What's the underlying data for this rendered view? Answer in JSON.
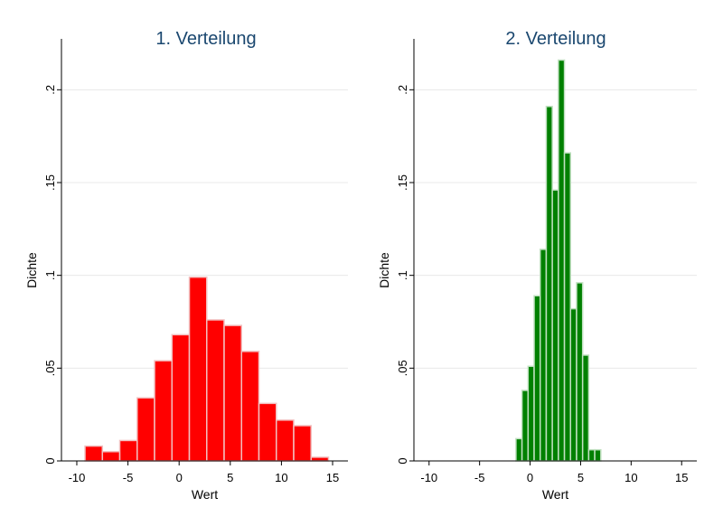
{
  "chart_data": [
    {
      "type": "bar",
      "title": "1. Verteilung",
      "xlabel": "Wert",
      "ylabel": "Dichte",
      "xlim": [
        -11.5,
        16.5
      ],
      "ylim": [
        0,
        0.225
      ],
      "grid": true,
      "color": "#ff0000",
      "edge_color": "#f2c0c0",
      "bin_width": 1.7,
      "x_ticks": [
        {
          "value": -10,
          "label": "-10"
        },
        {
          "value": -5,
          "label": "-5"
        },
        {
          "value": 0,
          "label": "0"
        },
        {
          "value": 5,
          "label": "5"
        },
        {
          "value": 10,
          "label": "10"
        },
        {
          "value": 15,
          "label": "15"
        }
      ],
      "y_ticks": [
        {
          "value": 0,
          "label": "0"
        },
        {
          "value": 0.05,
          "label": ".05"
        },
        {
          "value": 0.1,
          "label": ".1"
        },
        {
          "value": 0.15,
          "label": ".15"
        },
        {
          "value": 0.2,
          "label": ".2"
        }
      ],
      "bins": [
        {
          "start": -9.2,
          "value": 0.008
        },
        {
          "start": -7.5,
          "value": 0.005
        },
        {
          "start": -5.8,
          "value": 0.011
        },
        {
          "start": -4.1,
          "value": 0.034
        },
        {
          "start": -2.4,
          "value": 0.054
        },
        {
          "start": -0.7,
          "value": 0.068
        },
        {
          "start": 1.0,
          "value": 0.099
        },
        {
          "start": 2.7,
          "value": 0.076
        },
        {
          "start": 4.4,
          "value": 0.073
        },
        {
          "start": 6.1,
          "value": 0.059
        },
        {
          "start": 7.8,
          "value": 0.031
        },
        {
          "start": 9.5,
          "value": 0.022
        },
        {
          "start": 11.2,
          "value": 0.019
        },
        {
          "start": 12.9,
          "value": 0.002
        }
      ]
    },
    {
      "type": "bar",
      "title": "2. Verteilung",
      "xlabel": "Wert",
      "ylabel": "Dichte",
      "xlim": [
        -11.5,
        16.5
      ],
      "ylim": [
        0,
        0.225
      ],
      "grid": true,
      "color": "#008000",
      "edge_color": "#c0e0c0",
      "bin_width": 0.6,
      "x_ticks": [
        {
          "value": -10,
          "label": "-10"
        },
        {
          "value": -5,
          "label": "-5"
        },
        {
          "value": 0,
          "label": "0"
        },
        {
          "value": 5,
          "label": "5"
        },
        {
          "value": 10,
          "label": "10"
        },
        {
          "value": 15,
          "label": "15"
        }
      ],
      "y_ticks": [
        {
          "value": 0,
          "label": "0"
        },
        {
          "value": 0.05,
          "label": ".05"
        },
        {
          "value": 0.1,
          "label": ".1"
        },
        {
          "value": 0.15,
          "label": ".15"
        },
        {
          "value": 0.2,
          "label": ".2"
        }
      ],
      "bins": [
        {
          "start": -1.4,
          "value": 0.012
        },
        {
          "start": -0.8,
          "value": 0.038
        },
        {
          "start": -0.2,
          "value": 0.051
        },
        {
          "start": 0.4,
          "value": 0.089
        },
        {
          "start": 1.0,
          "value": 0.114
        },
        {
          "start": 1.6,
          "value": 0.191
        },
        {
          "start": 2.2,
          "value": 0.146
        },
        {
          "start": 2.8,
          "value": 0.216
        },
        {
          "start": 3.4,
          "value": 0.166
        },
        {
          "start": 4.0,
          "value": 0.082
        },
        {
          "start": 4.6,
          "value": 0.096
        },
        {
          "start": 5.2,
          "value": 0.057
        },
        {
          "start": 5.8,
          "value": 0.006
        },
        {
          "start": 6.4,
          "value": 0.006
        }
      ]
    }
  ]
}
